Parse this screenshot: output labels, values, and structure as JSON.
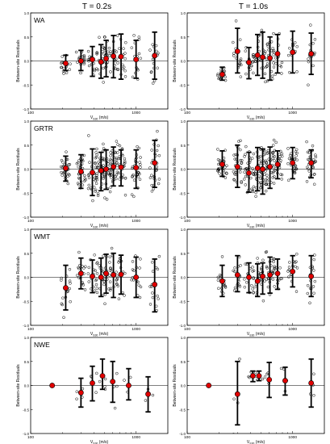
{
  "figure": {
    "column_titles": [
      "T = 0.2s",
      "T = 1.0s"
    ]
  },
  "chart_data": [
    {
      "type": "scatter",
      "period": "T = 0.2s",
      "region": "WA",
      "xlabel": "V_S30 (m/s)",
      "ylabel": "Between-site Residuals",
      "xscale": "log",
      "xlim": [
        100,
        2000
      ],
      "ylim": [
        -1.0,
        1.0
      ],
      "xticks": [
        100,
        1000
      ],
      "yticks": [
        -1.0,
        -0.5,
        0.0,
        0.5,
        1.0
      ],
      "grid": false,
      "bins": [
        {
          "x": 215,
          "mean": -0.05,
          "upper": 0.12,
          "lower": -0.2
        },
        {
          "x": 300,
          "mean": 0.0,
          "upper": 0.22,
          "lower": -0.2
        },
        {
          "x": 385,
          "mean": 0.03,
          "upper": 0.3,
          "lower": -0.32
        },
        {
          "x": 465,
          "mean": -0.02,
          "upper": 0.34,
          "lower": -0.36
        },
        {
          "x": 520,
          "mean": 0.05,
          "upper": 0.43,
          "lower": -0.33
        },
        {
          "x": 610,
          "mean": 0.1,
          "upper": 0.53,
          "lower": -0.35
        },
        {
          "x": 720,
          "mean": 0.09,
          "upper": 0.56,
          "lower": -0.38
        },
        {
          "x": 1000,
          "mean": 0.03,
          "upper": 0.43,
          "lower": -0.36
        },
        {
          "x": 1500,
          "mean": 0.11,
          "upper": 0.6,
          "lower": -0.38
        }
      ]
    },
    {
      "type": "scatter",
      "period": "T = 1.0s",
      "region": "WA",
      "xlabel": "V_S30 (m/s)",
      "ylabel": "Between-site Residuals",
      "xscale": "log",
      "xlim": [
        100,
        2000
      ],
      "ylim": [
        -1.0,
        1.0
      ],
      "xticks": [
        100,
        1000
      ],
      "yticks": [
        -1.0,
        -0.5,
        0.0,
        0.5,
        1.0
      ],
      "grid": false,
      "bins": [
        {
          "x": 215,
          "mean": -0.28,
          "upper": -0.13,
          "lower": -0.4
        },
        {
          "x": 300,
          "mean": 0.2,
          "upper": 0.68,
          "lower": -0.25
        },
        {
          "x": 385,
          "mean": -0.03,
          "upper": 0.28,
          "lower": -0.37
        },
        {
          "x": 465,
          "mean": 0.12,
          "upper": 0.55,
          "lower": -0.3
        },
        {
          "x": 520,
          "mean": 0.08,
          "upper": 0.6,
          "lower": -0.36
        },
        {
          "x": 610,
          "mean": 0.06,
          "upper": 0.5,
          "lower": -0.4
        },
        {
          "x": 720,
          "mean": 0.15,
          "upper": 0.55,
          "lower": -0.25
        },
        {
          "x": 1000,
          "mean": 0.18,
          "upper": 0.62,
          "lower": -0.25
        },
        {
          "x": 1500,
          "mean": 0.15,
          "upper": 0.58,
          "lower": -0.28
        }
      ]
    },
    {
      "type": "scatter",
      "period": "T = 0.2s",
      "region": "GRTR",
      "xlabel": "V_S30 (m/s)",
      "ylabel": "Between-site Residuals",
      "xscale": "log",
      "xlim": [
        100,
        2000
      ],
      "ylim": [
        -1.0,
        1.0
      ],
      "xticks": [
        100,
        1000
      ],
      "yticks": [
        -1.0,
        -0.5,
        0.0,
        0.5,
        1.0
      ],
      "grid": false,
      "bins": [
        {
          "x": 215,
          "mean": 0.02,
          "upper": 0.27,
          "lower": -0.25
        },
        {
          "x": 300,
          "mean": -0.05,
          "upper": 0.3,
          "lower": -0.4
        },
        {
          "x": 385,
          "mean": -0.07,
          "upper": 0.42,
          "lower": -0.55
        },
        {
          "x": 465,
          "mean": -0.03,
          "upper": 0.35,
          "lower": -0.45
        },
        {
          "x": 520,
          "mean": 0.0,
          "upper": 0.4,
          "lower": -0.42
        },
        {
          "x": 610,
          "mean": 0.05,
          "upper": 0.46,
          "lower": -0.35
        },
        {
          "x": 720,
          "mean": 0.04,
          "upper": 0.4,
          "lower": -0.35
        },
        {
          "x": 1000,
          "mean": 0.03,
          "upper": 0.4,
          "lower": -0.4
        },
        {
          "x": 1500,
          "mean": 0.13,
          "upper": 0.6,
          "lower": -0.38
        }
      ]
    },
    {
      "type": "scatter",
      "period": "T = 1.0s",
      "region": "GRTR",
      "xlabel": "V_S30 (m/s)",
      "ylabel": "Between-site Residuals",
      "xscale": "log",
      "xlim": [
        100,
        2000
      ],
      "ylim": [
        -1.0,
        1.0
      ],
      "xticks": [
        100,
        1000
      ],
      "yticks": [
        -1.0,
        -0.5,
        0.0,
        0.5,
        1.0
      ],
      "grid": false,
      "bins": [
        {
          "x": 215,
          "mean": 0.1,
          "upper": 0.38,
          "lower": -0.15
        },
        {
          "x": 300,
          "mean": 0.05,
          "upper": 0.5,
          "lower": -0.38
        },
        {
          "x": 385,
          "mean": -0.08,
          "upper": 0.35,
          "lower": -0.48
        },
        {
          "x": 465,
          "mean": 0.02,
          "upper": 0.45,
          "lower": -0.45
        },
        {
          "x": 520,
          "mean": 0.0,
          "upper": 0.42,
          "lower": -0.52
        },
        {
          "x": 610,
          "mean": 0.05,
          "upper": 0.46,
          "lower": -0.4
        },
        {
          "x": 720,
          "mean": 0.1,
          "upper": 0.38,
          "lower": -0.2
        },
        {
          "x": 1000,
          "mean": 0.13,
          "upper": 0.45,
          "lower": -0.2
        },
        {
          "x": 1500,
          "mean": 0.13,
          "upper": 0.4,
          "lower": -0.18
        }
      ]
    },
    {
      "type": "scatter",
      "period": "T = 0.2s",
      "region": "WMT",
      "xlabel": "V_S30 (m/s)",
      "ylabel": "Between-site Residuals",
      "xscale": "log",
      "xlim": [
        100,
        2000
      ],
      "ylim": [
        -1.0,
        1.0
      ],
      "xticks": [
        100,
        1000
      ],
      "yticks": [
        -1.0,
        -0.5,
        0.0,
        0.5,
        1.0
      ],
      "grid": false,
      "bins": [
        {
          "x": 215,
          "mean": -0.22,
          "upper": 0.25,
          "lower": -0.68
        },
        {
          "x": 300,
          "mean": 0.08,
          "upper": 0.4,
          "lower": -0.24
        },
        {
          "x": 385,
          "mean": 0.02,
          "upper": 0.36,
          "lower": -0.32
        },
        {
          "x": 465,
          "mean": 0.0,
          "upper": 0.4,
          "lower": -0.4
        },
        {
          "x": 520,
          "mean": 0.08,
          "upper": 0.48,
          "lower": -0.33
        },
        {
          "x": 610,
          "mean": 0.05,
          "upper": 0.5,
          "lower": -0.42
        },
        {
          "x": 720,
          "mean": 0.06,
          "upper": 0.46,
          "lower": -0.35
        },
        {
          "x": 1000,
          "mean": 0.0,
          "upper": 0.42,
          "lower": -0.42
        },
        {
          "x": 1500,
          "mean": -0.15,
          "upper": 0.38,
          "lower": -0.72
        }
      ]
    },
    {
      "type": "scatter",
      "period": "T = 1.0s",
      "region": "WMT",
      "xlabel": "V_S30 (m/s)",
      "ylabel": "Between-site Residuals",
      "xscale": "log",
      "xlim": [
        100,
        2000
      ],
      "ylim": [
        -1.0,
        1.0
      ],
      "xticks": [
        100,
        1000
      ],
      "yticks": [
        -1.0,
        -0.5,
        0.0,
        0.5,
        1.0
      ],
      "grid": false,
      "bins": [
        {
          "x": 215,
          "mean": -0.08,
          "upper": 0.25,
          "lower": -0.4
        },
        {
          "x": 300,
          "mean": 0.05,
          "upper": 0.45,
          "lower": -0.3
        },
        {
          "x": 385,
          "mean": 0.0,
          "upper": 0.3,
          "lower": -0.32
        },
        {
          "x": 465,
          "mean": -0.08,
          "upper": 0.28,
          "lower": -0.4
        },
        {
          "x": 520,
          "mean": 0.02,
          "upper": 0.3,
          "lower": -0.35
        },
        {
          "x": 610,
          "mean": 0.05,
          "upper": 0.42,
          "lower": -0.33
        },
        {
          "x": 720,
          "mean": 0.08,
          "upper": 0.38,
          "lower": -0.25
        },
        {
          "x": 1000,
          "mean": 0.12,
          "upper": 0.45,
          "lower": -0.2
        },
        {
          "x": 1500,
          "mean": 0.02,
          "upper": 0.45,
          "lower": -0.4
        }
      ]
    },
    {
      "type": "scatter",
      "period": "T = 0.2s",
      "region": "NWE",
      "xlabel": "V_S30 (m/s)",
      "ylabel": "Between-site Residuals",
      "xscale": "log",
      "xlim": [
        100,
        2000
      ],
      "ylim": [
        -1.0,
        1.0
      ],
      "xticks": [
        100,
        1000
      ],
      "yticks": [
        -1.0,
        -0.5,
        0.0,
        0.5,
        1.0
      ],
      "grid": false,
      "bins": [
        {
          "x": 160,
          "mean": 0.0,
          "upper": 0.0,
          "lower": 0.0
        },
        {
          "x": 300,
          "mean": -0.15,
          "upper": 0.15,
          "lower": -0.45
        },
        {
          "x": 385,
          "mean": 0.05,
          "upper": 0.4,
          "lower": -0.32
        },
        {
          "x": 480,
          "mean": 0.2,
          "upper": 0.55,
          "lower": -0.08
        },
        {
          "x": 600,
          "mean": 0.08,
          "upper": 0.5,
          "lower": -0.35
        },
        {
          "x": 850,
          "mean": 0.0,
          "upper": 0.35,
          "lower": -0.3
        },
        {
          "x": 1300,
          "mean": -0.18,
          "upper": 0.18,
          "lower": -0.55
        }
      ]
    },
    {
      "type": "scatter",
      "period": "T = 1.0s",
      "region": "NWE",
      "xlabel": "V_S30 (m/s)",
      "ylabel": "Between-site Residuals",
      "xscale": "log",
      "xlim": [
        100,
        2000
      ],
      "ylim": [
        -1.0,
        1.0
      ],
      "xticks": [
        100,
        1000
      ],
      "yticks": [
        -1.0,
        -0.5,
        0.0,
        0.5,
        1.0
      ],
      "grid": false,
      "bins": [
        {
          "x": 160,
          "mean": 0.0,
          "upper": 0.0,
          "lower": 0.0
        },
        {
          "x": 300,
          "mean": -0.18,
          "upper": 0.5,
          "lower": -0.82
        },
        {
          "x": 420,
          "mean": 0.2,
          "upper": 0.3,
          "lower": 0.08
        },
        {
          "x": 480,
          "mean": 0.2,
          "upper": 0.3,
          "lower": 0.1
        },
        {
          "x": 600,
          "mean": 0.12,
          "upper": 0.48,
          "lower": -0.25
        },
        {
          "x": 850,
          "mean": 0.1,
          "upper": 0.38,
          "lower": -0.2
        },
        {
          "x": 1500,
          "mean": 0.05,
          "upper": 0.55,
          "lower": -0.45
        }
      ]
    }
  ]
}
